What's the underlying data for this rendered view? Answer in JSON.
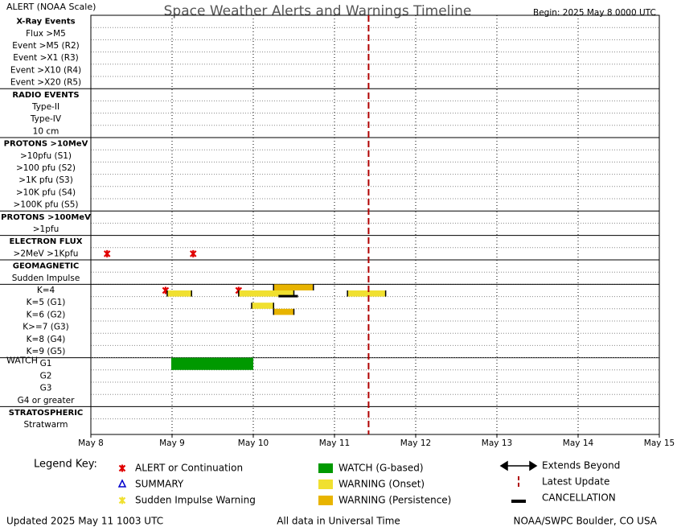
{
  "chart_data": {
    "type": "timeline",
    "title": "Space Weather Alerts and Warnings Timeline",
    "subtitle": "ALERT (NOAA Scale)",
    "begin": "Begin: 2025 May 8 0000 UTC",
    "footer_left": "Updated 2025 May 11 1003 UTC",
    "footer_center": "All data in Universal Time",
    "footer_right": "NOAA/SWPC Boulder, CO USA",
    "legend_title": "Legend Key:",
    "xlim": [
      8,
      15
    ],
    "xticks": [
      {
        "value": 8,
        "label": "May 8"
      },
      {
        "value": 9,
        "label": "May 9"
      },
      {
        "value": 10,
        "label": "May 10"
      },
      {
        "value": 11,
        "label": "May 11"
      },
      {
        "value": 12,
        "label": "May 12"
      },
      {
        "value": 13,
        "label": "May 13"
      },
      {
        "value": 14,
        "label": "May 14"
      },
      {
        "value": 15,
        "label": "May 15"
      }
    ],
    "grid": true,
    "sections": [
      {
        "title": "X-Ray Events",
        "rows": [
          "Flux >M5",
          "Event >M5 (R2)",
          "Event >X1 (R3)",
          "Event >X10 (R4)",
          "Event >X20 (R5)"
        ]
      },
      {
        "title": "RADIO EVENTS",
        "rows": [
          "Type-II",
          "Type-IV",
          "10 cm"
        ]
      },
      {
        "title": "PROTONS >10MeV",
        "rows": [
          ">10pfu (S1)",
          ">100 pfu (S2)",
          ">1K pfu (S3)",
          ">10K pfu (S4)",
          ">100K pfu (S5)"
        ]
      },
      {
        "title": "PROTONS >100MeV",
        "rows": [
          ">1pfu"
        ]
      },
      {
        "title": "ELECTRON FLUX",
        "rows": [
          ">2MeV >1Kpfu"
        ]
      },
      {
        "title": "GEOMAGNETIC",
        "rows": [
          "Sudden Impulse",
          "K=4",
          "K=5 (G1)",
          "K=6 (G2)",
          "K>=7 (G3)",
          "K=8 (G4)",
          "K=9 (G5)"
        ]
      },
      {
        "title": "WATCH",
        "title_inline": true,
        "rows": [
          "G1",
          "G2",
          "G3",
          "G4 or greater"
        ]
      },
      {
        "title": "STRATOSPHERIC",
        "rows": [
          "Stratwarm"
        ]
      }
    ],
    "series": [
      {
        "name": "ALERT or Continuation",
        "kind": "alert",
        "color": "#e00000",
        "points": [
          {
            "row": [
              4,
              0
            ],
            "x": 8.2
          },
          {
            "row": [
              4,
              0
            ],
            "x": 9.26
          },
          {
            "row": [
              5,
              1
            ],
            "x": 8.92
          },
          {
            "row": [
              5,
              1
            ],
            "x": 9.82
          }
        ]
      },
      {
        "name": "SUMMARY",
        "kind": "summary",
        "color": "#0000cc",
        "points": []
      },
      {
        "name": "Sudden Impulse Warning",
        "kind": "si",
        "color": "#f0e030",
        "points": []
      },
      {
        "name": "WATCH (G-based)",
        "kind": "watch",
        "color": "#009900",
        "bars": [
          {
            "row": [
              6,
              0
            ],
            "start": 8.99,
            "end": 10.0
          }
        ]
      },
      {
        "name": "WARNING (Onset)",
        "kind": "onset",
        "color": "#f0e030",
        "bars": [
          {
            "row": [
              5,
              1
            ],
            "start": 8.94,
            "end": 9.24
          },
          {
            "row": [
              5,
              1
            ],
            "start": 9.82,
            "end": 10.5
          },
          {
            "row": [
              5,
              1
            ],
            "start": 11.16,
            "end": 11.63
          },
          {
            "row": [
              5,
              2
            ],
            "start": 9.98,
            "end": 10.25
          }
        ]
      },
      {
        "name": "WARNING (Persistence)",
        "kind": "persistence",
        "color": "#e8b400",
        "bars": [
          {
            "row": [
              5,
              1
            ],
            "start": 10.25,
            "end": 10.74
          },
          {
            "row": [
              5,
              3
            ],
            "start": 10.25,
            "end": 10.5
          }
        ]
      },
      {
        "name": "Extends Beyond",
        "kind": "arrow",
        "color": "#000000"
      },
      {
        "name": "Latest Update",
        "kind": "vline",
        "color": "#b00000",
        "x": 11.42
      },
      {
        "name": "CANCELLATION",
        "kind": "cancel",
        "color": "#000000",
        "bars": [
          {
            "row": [
              5,
              2
            ],
            "start": 10.31,
            "end": 10.55
          }
        ]
      }
    ]
  }
}
